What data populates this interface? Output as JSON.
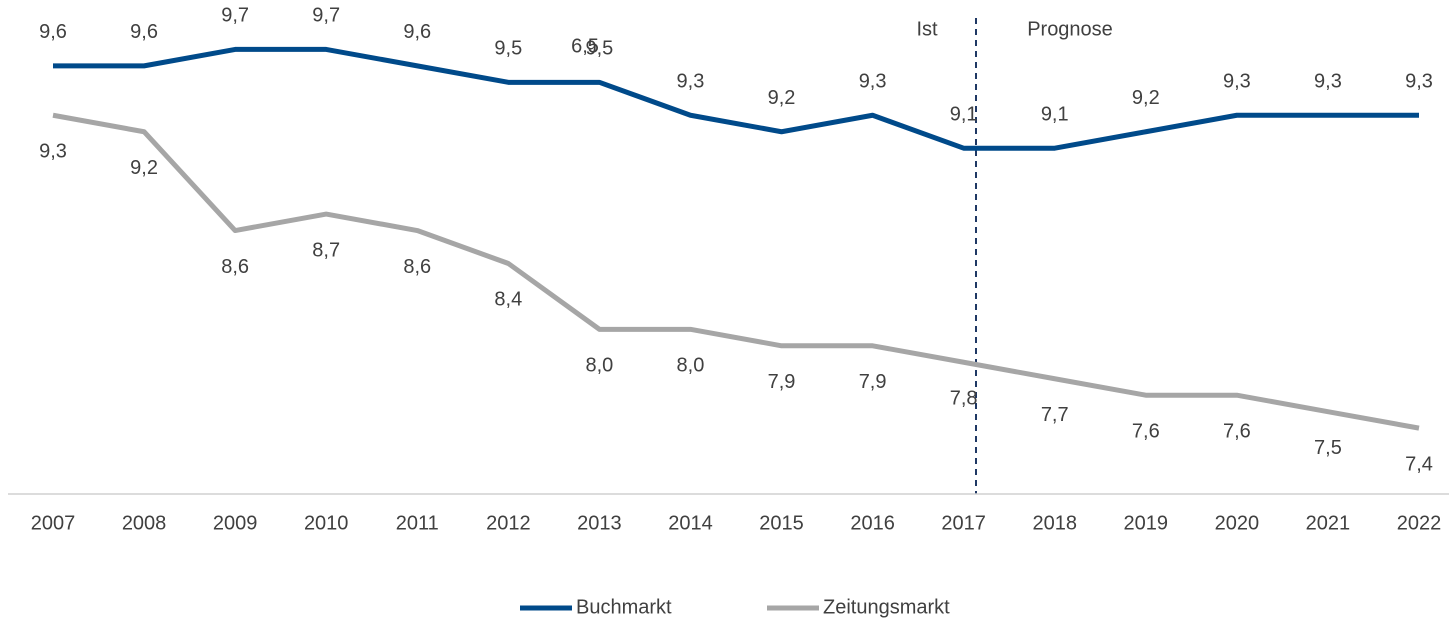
{
  "chart_data": {
    "type": "line",
    "categories": [
      "2007",
      "2008",
      "2009",
      "2010",
      "2011",
      "2012",
      "2013",
      "2014",
      "2015",
      "2016",
      "2017",
      "2018",
      "2019",
      "2020",
      "2021",
      "2022"
    ],
    "series": [
      {
        "name": "Buchmarkt",
        "color": "#004a8a",
        "values": [
          9.6,
          9.6,
          9.7,
          9.7,
          9.6,
          9.5,
          9.5,
          9.3,
          9.2,
          9.3,
          9.1,
          9.1,
          9.2,
          9.3,
          9.3,
          9.3
        ],
        "value_labels": [
          "9,6",
          "9,6",
          "9,7",
          "9,7",
          "9,6",
          "9,5",
          "9,5",
          "9,3",
          "9,2",
          "9,3",
          "9,1",
          "9,1",
          "9,2",
          "9,3",
          "9,3",
          "9,3"
        ]
      },
      {
        "name": "Zeitungsmarkt",
        "color": "#a6a6a6",
        "values": [
          9.3,
          9.2,
          8.6,
          8.7,
          8.6,
          8.4,
          8.0,
          8.0,
          7.9,
          7.9,
          7.8,
          7.7,
          7.6,
          7.6,
          7.5,
          7.4
        ],
        "value_labels": [
          "9,3",
          "9,2",
          "8,6",
          "8,7",
          "8,6",
          "8,4",
          "8,0",
          "8,0",
          "7,9",
          "7,9",
          "7,8",
          "7,7",
          "7,6",
          "7,6",
          "7,5",
          "7,4"
        ]
      }
    ],
    "ylim": [
      7,
      10
    ],
    "annotations": [
      "Ist",
      "Prognose",
      "6,5"
    ],
    "legend": "bottom"
  }
}
